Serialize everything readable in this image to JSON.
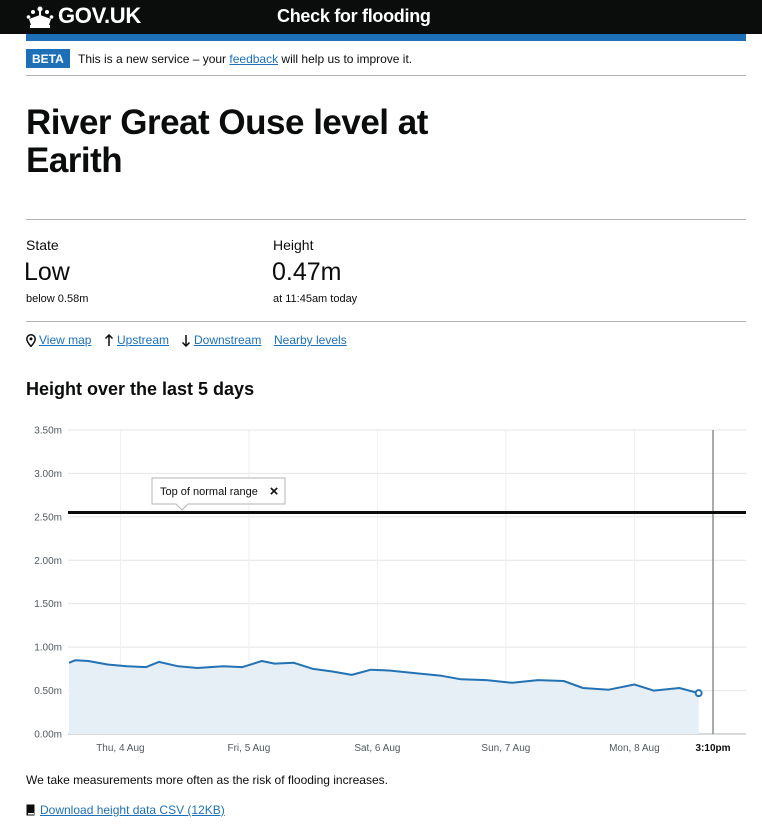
{
  "header": {
    "logo": "GOV.UK",
    "service_name": "Check for flooding"
  },
  "phase_banner": {
    "tag": "BETA",
    "text_before": "This is a new service – your ",
    "link": "feedback",
    "text_after": " will help us to improve it."
  },
  "page_title": "River Great Ouse level at Earith",
  "stats": {
    "state": {
      "label": "State",
      "value": "Low",
      "sub": "below 0.58m"
    },
    "height": {
      "label": "Height",
      "value": "0.47m",
      "sub": "at 11:45am today"
    }
  },
  "nav_links": {
    "view_map": "View map",
    "upstream": "Upstream",
    "downstream": "Downstream",
    "nearby": "Nearby levels"
  },
  "chart_heading": "Height over the last 5 days",
  "chart_data": {
    "type": "area",
    "title": "",
    "xlabel": "",
    "ylabel": "",
    "y_ticks": [
      "3.50m",
      "3.00m",
      "2.50m",
      "2.00m",
      "1.50m",
      "1.00m",
      "0.50m",
      "0.00m"
    ],
    "ylim": [
      0,
      3.5
    ],
    "x_ticks": [
      "Thu, 4 Aug",
      "Fri, 5 Aug",
      "Sat, 6 Aug",
      "Sun, 7 Aug",
      "Mon, 8 Aug"
    ],
    "now_label": "3:10pm",
    "threshold": {
      "label": "Top of normal range",
      "close": "×",
      "value": 2.55
    },
    "grid": true,
    "series": [
      {
        "values_x_days": [
          0,
          0.05,
          0.15,
          0.3,
          0.45,
          0.6,
          0.7,
          0.85,
          1.0,
          1.2,
          1.35,
          1.5,
          1.6,
          1.75,
          1.9,
          2.05,
          2.2,
          2.35,
          2.5,
          2.7,
          2.9,
          3.05,
          3.25,
          3.45,
          3.65,
          3.85,
          4.0,
          4.2,
          4.4,
          4.55,
          4.75,
          4.9
        ],
        "values_y": [
          0.82,
          0.85,
          0.84,
          0.8,
          0.78,
          0.77,
          0.83,
          0.78,
          0.76,
          0.78,
          0.77,
          0.84,
          0.81,
          0.82,
          0.75,
          0.72,
          0.68,
          0.74,
          0.73,
          0.7,
          0.67,
          0.63,
          0.62,
          0.59,
          0.62,
          0.61,
          0.53,
          0.51,
          0.57,
          0.5,
          0.53,
          0.47
        ]
      }
    ]
  },
  "note": "We take measurements more often as the risk of flooding increases.",
  "download": "Download height data CSV (12KB)",
  "colors": {
    "header": "#0b0c0c",
    "brand_blue": "#1d70b8",
    "area_fill": "#e6eef6",
    "line": "#2272b4"
  }
}
